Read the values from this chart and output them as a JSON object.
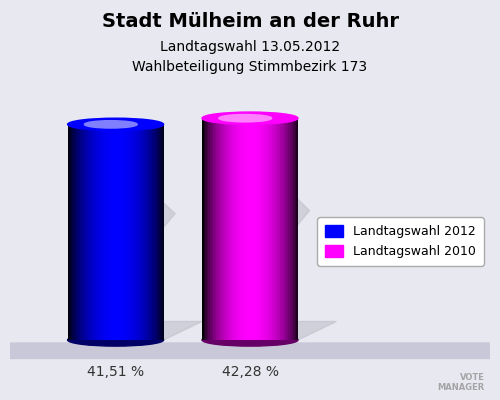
{
  "title": "Stadt Mülheim an der Ruhr",
  "subtitle1": "Landtagswahl 13.05.2012",
  "subtitle2": "Wahlbeteiligung Stimmbezirk 173",
  "categories": [
    "Landtagswahl 2012",
    "Landtagswahl 2010"
  ],
  "values": [
    41.51,
    42.28
  ],
  "labels": [
    "41,51 %",
    "42,28 %"
  ],
  "bar_colors": [
    "#0000ff",
    "#ff00ff"
  ],
  "background_color": "#e8e8f0",
  "title_fontsize": 14,
  "subtitle_fontsize": 10,
  "label_fontsize": 10,
  "legend_fontsize": 9
}
